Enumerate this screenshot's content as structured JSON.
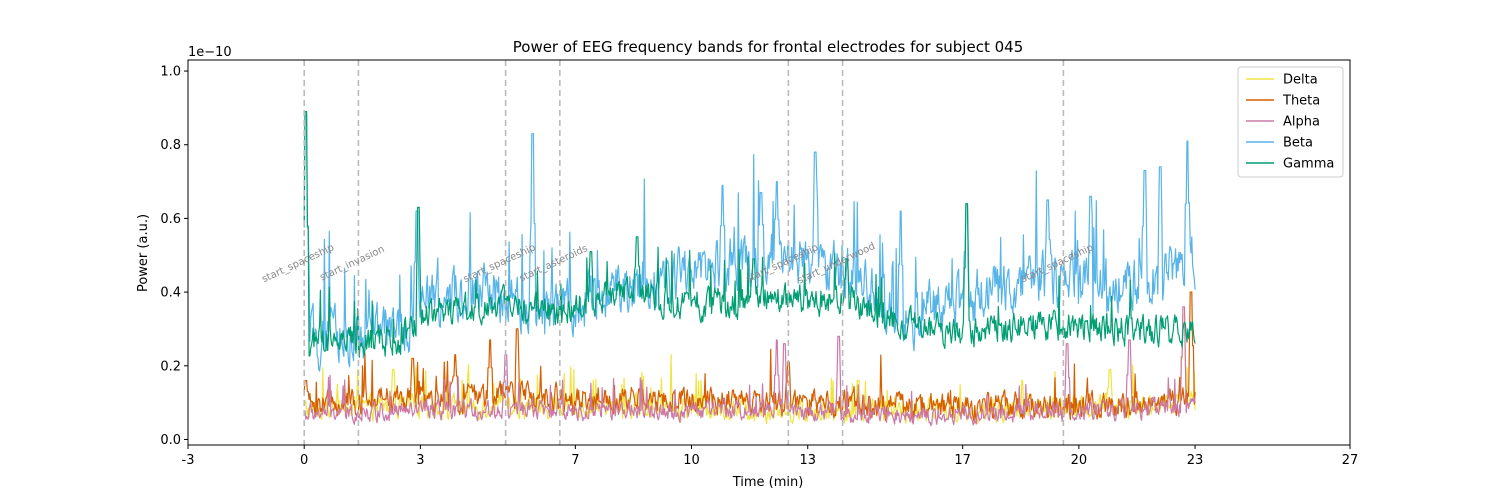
{
  "chart_data": {
    "type": "line",
    "title": "Power of EEG frequency bands for frontal electrodes for subject 045",
    "xlabel": "Time (min)",
    "ylabel": "Power (a.u.)",
    "y_offset_label": "1e−10",
    "xlim": [
      -3,
      27
    ],
    "ylim": [
      -0.015,
      1.03
    ],
    "x_ticks": [
      -3,
      0,
      3,
      7,
      10,
      13,
      17,
      20,
      23,
      27
    ],
    "x_tick_labels": [
      "-3",
      "0",
      "3",
      "7",
      "10",
      "13",
      "17",
      "20",
      "23",
      "27"
    ],
    "y_ticks": [
      0.0,
      0.2,
      0.4,
      0.6,
      0.8,
      1.0
    ],
    "y_tick_labels": [
      "0.0",
      "0.2",
      "0.4",
      "0.6",
      "0.8",
      "1.0"
    ],
    "grid": false,
    "legend_position": "top-right",
    "time_range": [
      0,
      23
    ],
    "events": [
      {
        "x": 0.0,
        "label": "start_spaceship"
      },
      {
        "x": 1.4,
        "label": "start_invasion"
      },
      {
        "x": 5.2,
        "label": "start_spaceship"
      },
      {
        "x": 6.6,
        "label": "start_asteroids"
      },
      {
        "x": 12.5,
        "label": "start_spaceship"
      },
      {
        "x": 13.9,
        "label": "start_underwood"
      },
      {
        "x": 19.6,
        "label": "start_spaceship"
      }
    ],
    "series": [
      {
        "name": "Delta",
        "color": "#f0e442",
        "trend": [
          [
            0,
            0.08
          ],
          [
            3,
            0.09
          ],
          [
            6,
            0.09
          ],
          [
            9,
            0.09
          ],
          [
            12,
            0.08
          ],
          [
            15,
            0.08
          ],
          [
            18,
            0.08
          ],
          [
            21,
            0.09
          ],
          [
            23,
            0.1
          ]
        ],
        "noise": 0.03,
        "peaks": [
          [
            2.3,
            0.19
          ],
          [
            14.3,
            0.16
          ],
          [
            20.8,
            0.19
          ],
          [
            22.7,
            0.34
          ]
        ]
      },
      {
        "name": "Theta",
        "color": "#d55e00",
        "trend": [
          [
            0,
            0.1
          ],
          [
            3,
            0.11
          ],
          [
            5,
            0.12
          ],
          [
            8,
            0.11
          ],
          [
            12,
            0.1
          ],
          [
            15,
            0.09
          ],
          [
            18,
            0.09
          ],
          [
            21,
            0.09
          ],
          [
            23,
            0.11
          ]
        ],
        "noise": 0.035,
        "peaks": [
          [
            0.05,
            0.16
          ],
          [
            2.8,
            0.22
          ],
          [
            3.9,
            0.23
          ],
          [
            4.8,
            0.27
          ],
          [
            5.5,
            0.3
          ],
          [
            12.5,
            0.21
          ],
          [
            22.9,
            0.4
          ]
        ]
      },
      {
        "name": "Alpha",
        "color": "#cc79a7",
        "trend": [
          [
            0,
            0.07
          ],
          [
            3,
            0.08
          ],
          [
            6,
            0.08
          ],
          [
            9,
            0.08
          ],
          [
            12,
            0.08
          ],
          [
            15,
            0.07
          ],
          [
            18,
            0.07
          ],
          [
            21,
            0.08
          ],
          [
            23,
            0.09
          ]
        ],
        "noise": 0.025,
        "peaks": [
          [
            5.2,
            0.23
          ],
          [
            12.2,
            0.27
          ],
          [
            12.4,
            0.26
          ],
          [
            13.8,
            0.28
          ],
          [
            19.7,
            0.26
          ],
          [
            21.3,
            0.27
          ],
          [
            22.7,
            0.36
          ]
        ]
      },
      {
        "name": "Beta",
        "color": "#56b4e9",
        "trend": [
          [
            0,
            0.27
          ],
          [
            1,
            0.28
          ],
          [
            2.5,
            0.3
          ],
          [
            3.2,
            0.38
          ],
          [
            5,
            0.4
          ],
          [
            6,
            0.34
          ],
          [
            8,
            0.4
          ],
          [
            10,
            0.45
          ],
          [
            12,
            0.5
          ],
          [
            14,
            0.45
          ],
          [
            15.5,
            0.32
          ],
          [
            17,
            0.38
          ],
          [
            19,
            0.44
          ],
          [
            21,
            0.4
          ],
          [
            22,
            0.44
          ],
          [
            23,
            0.48
          ]
        ],
        "noise": 0.07,
        "peaks": [
          [
            0.05,
            0.88
          ],
          [
            2.9,
            0.62
          ],
          [
            5.9,
            0.83
          ],
          [
            10.8,
            0.69
          ],
          [
            11.8,
            0.67
          ],
          [
            12.2,
            0.7
          ],
          [
            13.2,
            0.78
          ],
          [
            15.4,
            0.62
          ],
          [
            17.1,
            0.64
          ],
          [
            19.2,
            0.65
          ],
          [
            20.3,
            0.66
          ],
          [
            21.7,
            0.73
          ],
          [
            22.1,
            0.74
          ],
          [
            22.8,
            0.81
          ]
        ]
      },
      {
        "name": "Gamma",
        "color": "#009e73",
        "trend": [
          [
            0,
            0.27
          ],
          [
            1,
            0.26
          ],
          [
            2.5,
            0.27
          ],
          [
            3.2,
            0.35
          ],
          [
            5,
            0.37
          ],
          [
            6.5,
            0.34
          ],
          [
            8,
            0.4
          ],
          [
            10,
            0.37
          ],
          [
            12,
            0.38
          ],
          [
            14,
            0.38
          ],
          [
            15.5,
            0.31
          ],
          [
            17,
            0.29
          ],
          [
            19,
            0.31
          ],
          [
            21,
            0.3
          ],
          [
            23,
            0.29
          ]
        ],
        "noise": 0.04,
        "peaks": [
          [
            0.05,
            0.89
          ],
          [
            2.95,
            0.63
          ],
          [
            7.4,
            0.51
          ],
          [
            8.6,
            0.55
          ],
          [
            11.6,
            0.49
          ],
          [
            14.0,
            0.49
          ],
          [
            17.1,
            0.64
          ]
        ]
      }
    ]
  }
}
